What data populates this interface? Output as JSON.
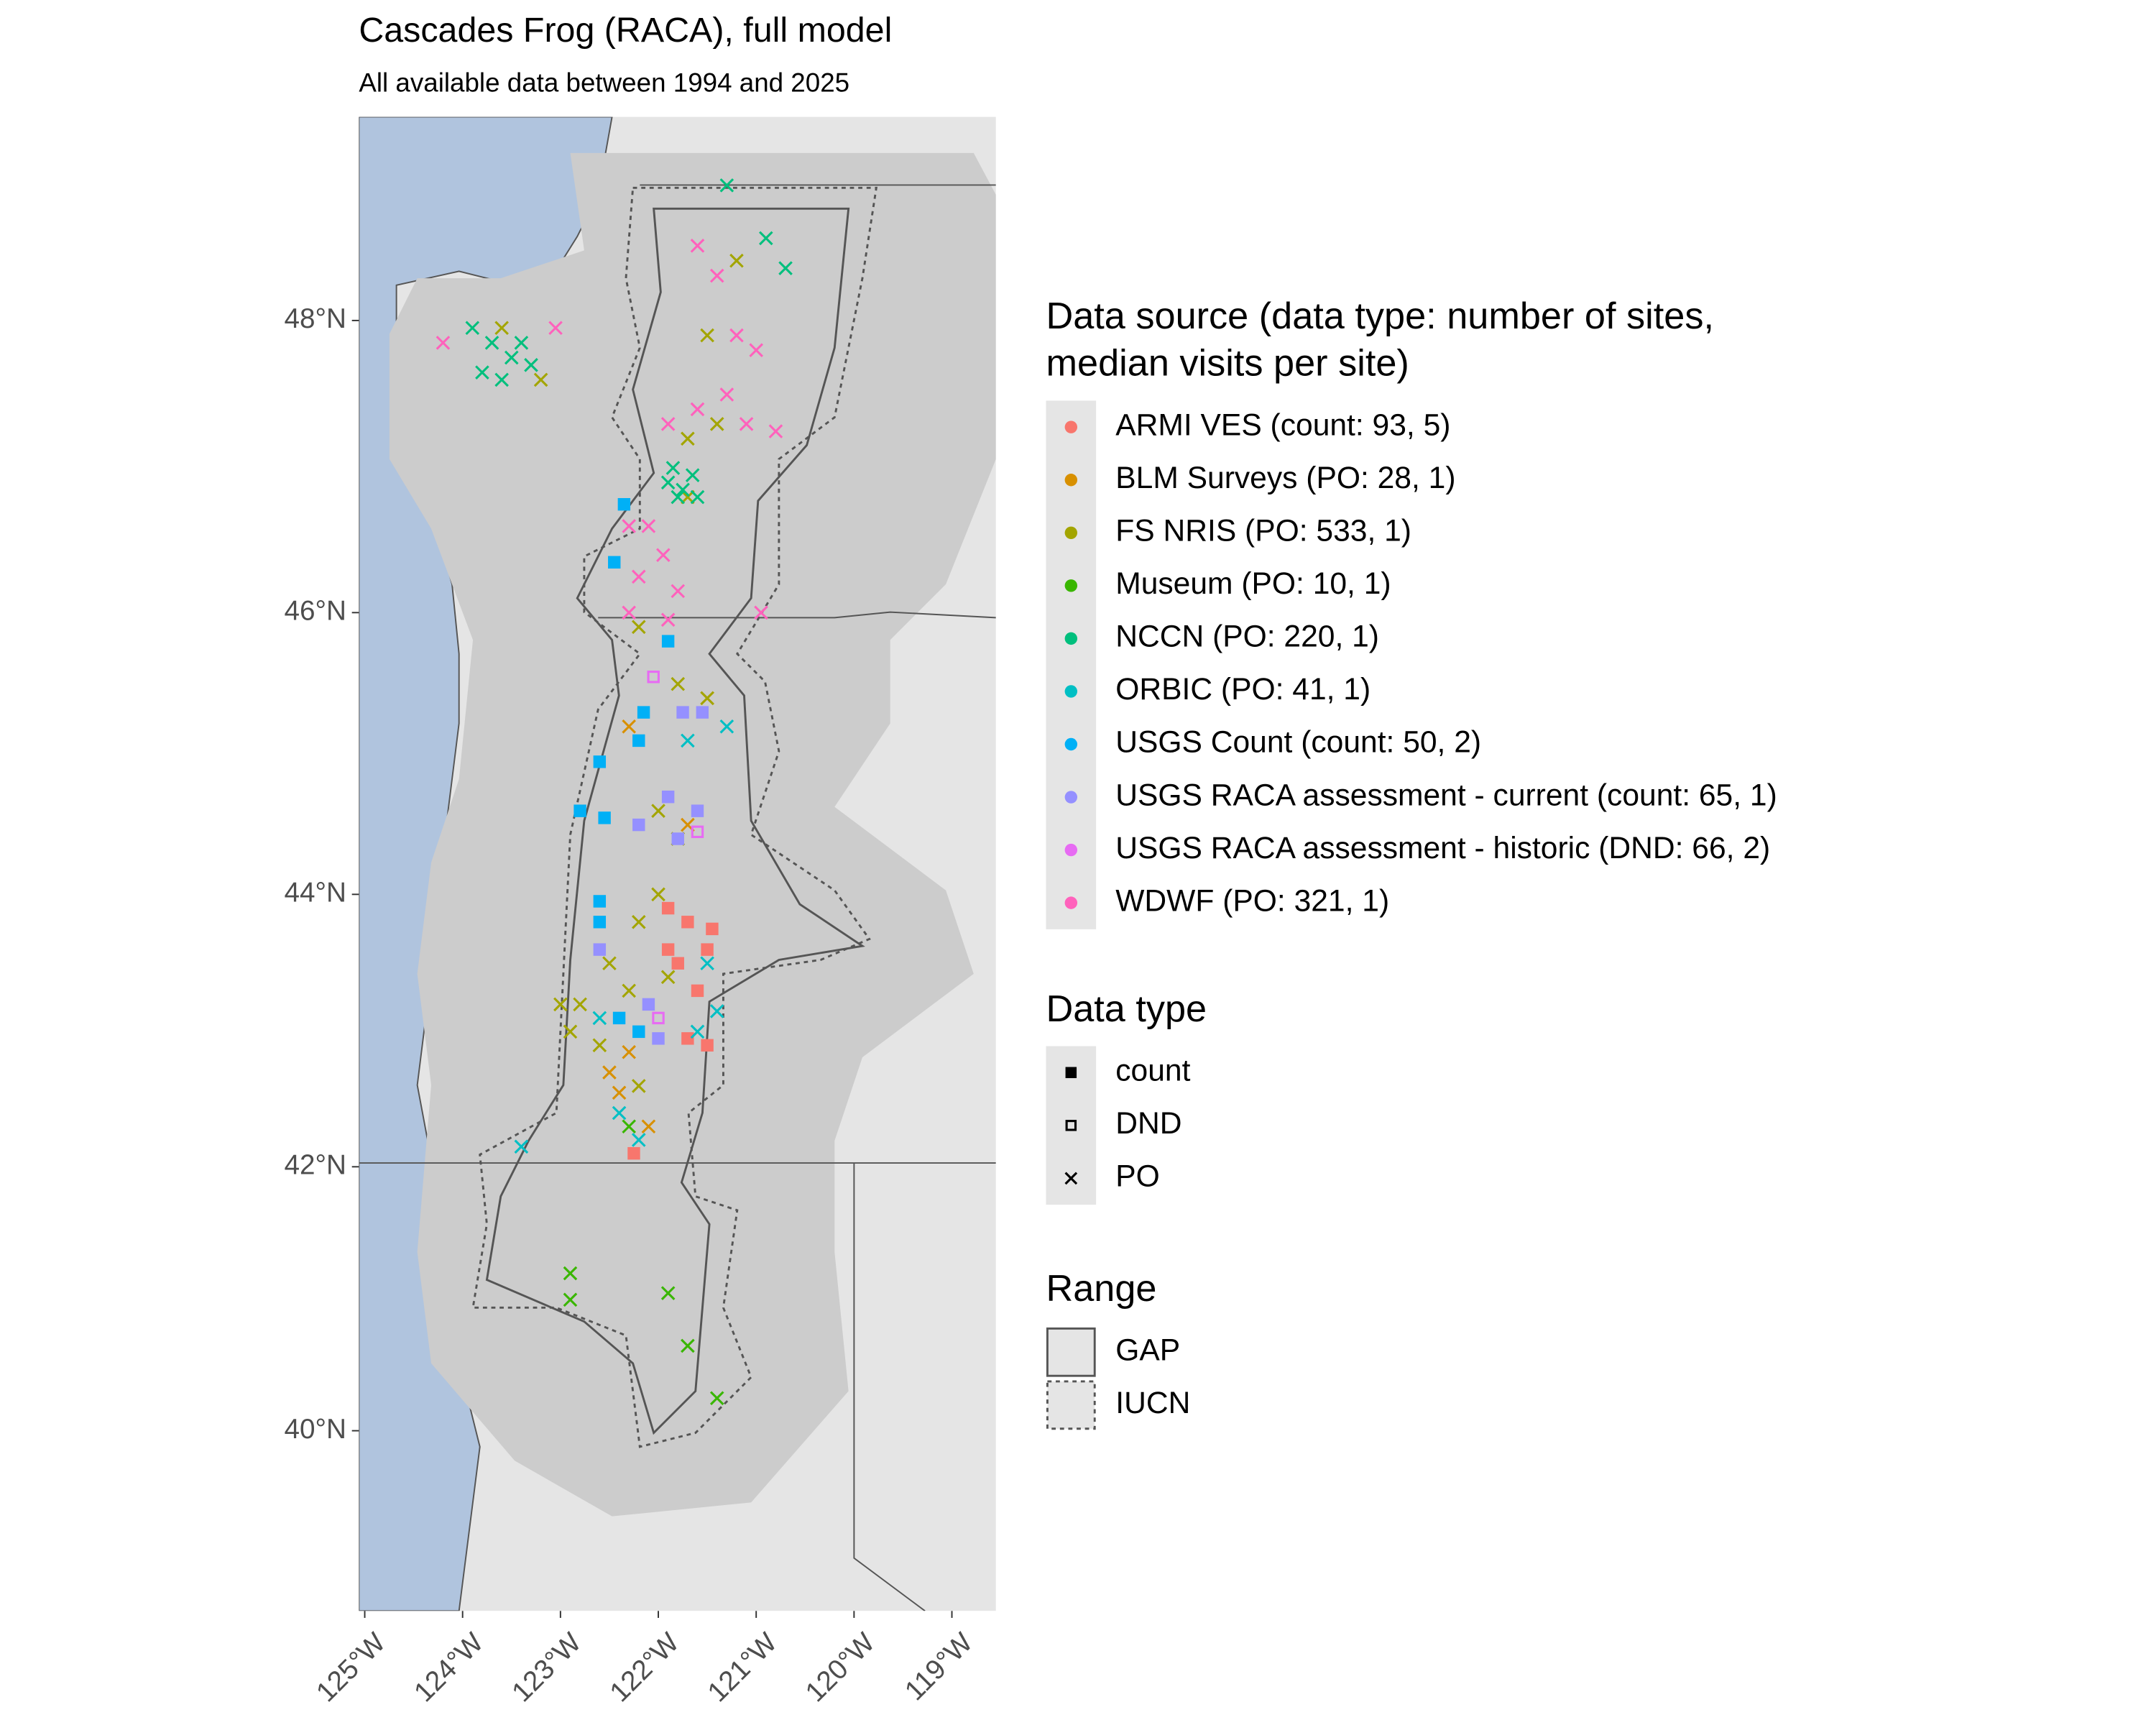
{
  "chart_data": {
    "type": "map",
    "projection": "mercator",
    "title": "Cascades Frog (RACA), full model",
    "subtitle": "All available data between 1994 and 2025",
    "xlim": [
      -125.06,
      -118.55
    ],
    "ylim": [
      38.6,
      49.35
    ],
    "xticks": [
      {
        "value": -125,
        "label": "125°W"
      },
      {
        "value": -124,
        "label": "124°W"
      },
      {
        "value": -123,
        "label": "123°W"
      },
      {
        "value": -122,
        "label": "122°W"
      },
      {
        "value": -121,
        "label": "121°W"
      },
      {
        "value": -120,
        "label": "120°W"
      },
      {
        "value": -119,
        "label": "119°W"
      }
    ],
    "yticks": [
      {
        "value": 40,
        "label": "40°N"
      },
      {
        "value": 42,
        "label": "42°N"
      },
      {
        "value": 44,
        "label": "44°N"
      },
      {
        "value": 46,
        "label": "46°N"
      },
      {
        "value": 48,
        "label": "48°N"
      }
    ],
    "legend_title": "Data source (data type: number of sites, median visits per site)",
    "series": [
      {
        "name": "ARMI VES (count: 93, 5)",
        "color": "#F8766D",
        "data_type": "count",
        "x": [
          -121.9,
          -121.7,
          -121.45,
          -121.5,
          -121.8,
          -121.6,
          -121.7,
          -121.5,
          -122.25,
          -121.9
        ],
        "y": [
          43.9,
          43.8,
          43.75,
          43.6,
          43.5,
          43.3,
          42.95,
          42.9,
          42.1,
          43.6
        ]
      },
      {
        "name": "BLM Surveys (PO: 28, 1)",
        "color": "#D89000",
        "data_type": "PO",
        "x": [
          -122.5,
          -122.4,
          -122.1,
          -122.3,
          -121.5,
          -121.7,
          -122.3
        ],
        "y": [
          42.7,
          42.55,
          42.3,
          45.2,
          45.4,
          44.5,
          42.85
        ]
      },
      {
        "name": "FS NRIS (PO: 533, 1)",
        "color": "#A3A500",
        "data_type": "PO",
        "x": [
          -123.6,
          -123.2,
          -121.2,
          -121.5,
          -121.4,
          -121.7,
          -121.8,
          -121.5,
          -122.0,
          -121.8,
          -122.0,
          -122.2,
          -122.5,
          -122.8,
          -122.9,
          -122.6,
          -122.2,
          -123.0,
          -121.9,
          -122.3,
          -121.7,
          -122.2
        ],
        "y": [
          47.95,
          47.6,
          48.4,
          47.9,
          47.3,
          47.2,
          45.5,
          45.4,
          44.6,
          44.4,
          44.0,
          43.8,
          43.5,
          43.2,
          43.0,
          42.9,
          42.6,
          43.2,
          43.4,
          43.3,
          46.8,
          45.9
        ]
      },
      {
        "name": "Museum (PO: 10, 1)",
        "color": "#39B600",
        "data_type": "PO",
        "x": [
          -122.9,
          -122.9,
          -121.9,
          -121.7,
          -121.4,
          -122.3
        ],
        "y": [
          41.2,
          41.0,
          41.05,
          40.65,
          40.25,
          42.3
        ]
      },
      {
        "name": "NCCN (PO: 220, 1)",
        "color": "#00BF7D",
        "data_type": "PO",
        "x": [
          -123.9,
          -123.7,
          -123.5,
          -123.6,
          -123.3,
          -123.4,
          -123.8,
          -121.9,
          -121.75,
          -121.65,
          -121.8,
          -121.6,
          -121.85,
          -121.3,
          -120.9,
          -120.7
        ],
        "y": [
          47.95,
          47.85,
          47.75,
          47.6,
          47.7,
          47.85,
          47.65,
          46.9,
          46.85,
          46.95,
          46.8,
          46.8,
          47.0,
          48.9,
          48.55,
          48.35
        ]
      },
      {
        "name": "ORBIC (PO: 41, 1)",
        "color": "#00BFC4",
        "data_type": "PO",
        "x": [
          -123.4,
          -121.5,
          -121.4,
          -122.4,
          -122.2,
          -121.3,
          -121.7,
          -122.6,
          -121.6
        ],
        "y": [
          42.15,
          43.5,
          43.15,
          42.4,
          42.2,
          45.2,
          45.1,
          43.1,
          43.0
        ]
      },
      {
        "name": "USGS Count (count: 50, 2)",
        "color": "#00B0F6",
        "data_type": "count",
        "x": [
          -122.35,
          -122.45,
          -121.9,
          -122.15,
          -122.2,
          -122.6,
          -122.8,
          -122.55,
          -122.6,
          -122.6,
          -122.4,
          -122.2
        ],
        "y": [
          46.75,
          46.35,
          45.8,
          45.3,
          45.1,
          44.95,
          44.6,
          44.55,
          43.95,
          43.8,
          43.1,
          43.0
        ]
      },
      {
        "name": "USGS RACA assessment - current (count: 65, 1)",
        "color": "#9590FF",
        "data_type": "count",
        "x": [
          -121.75,
          -121.55,
          -122.2,
          -121.9,
          -121.6,
          -122.6,
          -122.1,
          -122.0,
          -121.8
        ],
        "y": [
          45.3,
          45.3,
          44.5,
          44.7,
          44.6,
          43.6,
          43.2,
          42.95,
          44.4
        ]
      },
      {
        "name": "USGS RACA assessment - historic (DND: 66, 2)",
        "color": "#E76BF3",
        "data_type": "DND",
        "x": [
          -122.05,
          -121.6,
          -122.0
        ],
        "y": [
          45.55,
          44.45,
          43.1
        ]
      },
      {
        "name": "WDWF (PO: 321, 1)",
        "color": "#FF62BC",
        "data_type": "PO",
        "x": [
          -123.05,
          -124.2,
          -121.6,
          -121.4,
          -121.2,
          -121.0,
          -121.6,
          -121.3,
          -121.9,
          -122.1,
          -122.3,
          -121.95,
          -122.2,
          -121.8,
          -121.9,
          -120.95,
          -122.3,
          -121.1,
          -120.8
        ],
        "y": [
          47.95,
          47.85,
          48.5,
          48.3,
          47.9,
          47.8,
          47.4,
          47.5,
          47.3,
          46.6,
          46.6,
          46.4,
          46.25,
          46.15,
          45.95,
          46.0,
          46.0,
          47.3,
          47.25
        ]
      }
    ],
    "data_types": {
      "title": "Data type",
      "items": [
        {
          "name": "count",
          "shape": "square"
        },
        {
          "name": "DND",
          "shape": "open-square"
        },
        {
          "name": "PO",
          "shape": "cross"
        }
      ]
    },
    "range": {
      "title": "Range",
      "items": [
        {
          "name": "GAP",
          "linestyle": "solid"
        },
        {
          "name": "IUCN",
          "linestyle": "dotted"
        }
      ]
    }
  }
}
